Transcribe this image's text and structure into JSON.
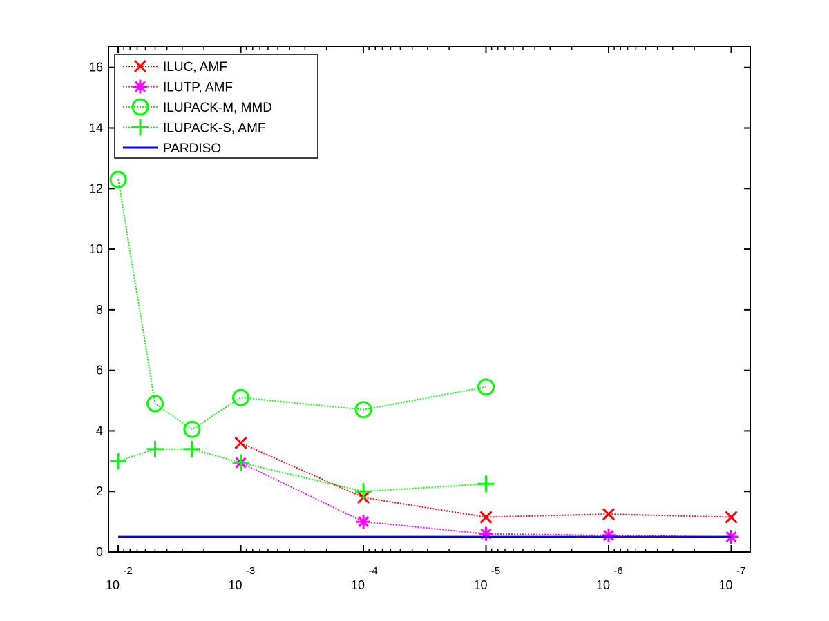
{
  "chart_data": {
    "type": "line",
    "title": "",
    "xlabel": "",
    "ylabel": "",
    "x_scale": "log",
    "x_reversed": true,
    "xlim": [
      0.012,
      7e-08
    ],
    "ylim": [
      0,
      16.7
    ],
    "x_ticks": [
      {
        "value": 0.01,
        "base": "10",
        "exp": "-2"
      },
      {
        "value": 0.001,
        "base": "10",
        "exp": "-3"
      },
      {
        "value": 0.0001,
        "base": "10",
        "exp": "-4"
      },
      {
        "value": 1e-05,
        "base": "10",
        "exp": "-5"
      },
      {
        "value": 1e-06,
        "base": "10",
        "exp": "-6"
      },
      {
        "value": 1e-07,
        "base": "10",
        "exp": "-7"
      }
    ],
    "y_ticks": [
      0,
      2,
      4,
      6,
      8,
      10,
      12,
      14,
      16
    ],
    "y_tick_labels": [
      "0",
      "2",
      "4",
      "6",
      "8",
      "10",
      "12",
      "14",
      "16"
    ],
    "grid": false,
    "legend_position": "top-left",
    "series": [
      {
        "name": "ILUC, AMF",
        "color": "#ff0000",
        "marker": "x",
        "line_style": "dotted",
        "x": [
          0.001,
          0.0001,
          1e-05,
          1e-06,
          1e-07
        ],
        "y": [
          3.6,
          1.8,
          1.15,
          1.25,
          1.15
        ]
      },
      {
        "name": "ILUTP, AMF",
        "color": "#ff00ff",
        "marker": "asterisk",
        "line_style": "dotted",
        "x": [
          0.001,
          0.0001,
          1e-05,
          1e-06,
          1e-07
        ],
        "y": [
          2.95,
          1.0,
          0.6,
          0.55,
          0.5
        ]
      },
      {
        "name": "ILUPACK-M, MMD",
        "color": "#00ff00",
        "marker": "circle",
        "line_style": "dotted",
        "x": [
          0.01,
          0.005,
          0.0025,
          0.001,
          0.0001,
          1e-05
        ],
        "y": [
          12.3,
          4.9,
          4.05,
          5.1,
          4.7,
          5.45
        ]
      },
      {
        "name": "ILUPACK-S, AMF",
        "color": "#00ff00",
        "marker": "plus",
        "line_style": "dotted",
        "x": [
          0.01,
          0.005,
          0.0025,
          0.001,
          0.0001,
          1e-05
        ],
        "y": [
          3.0,
          3.4,
          3.4,
          2.95,
          2.0,
          2.25
        ]
      },
      {
        "name": "PARDISO",
        "color": "#0000ff",
        "marker": "none",
        "line_style": "solid",
        "x": [
          0.01,
          1e-07
        ],
        "y": [
          0.5,
          0.5
        ]
      }
    ]
  }
}
